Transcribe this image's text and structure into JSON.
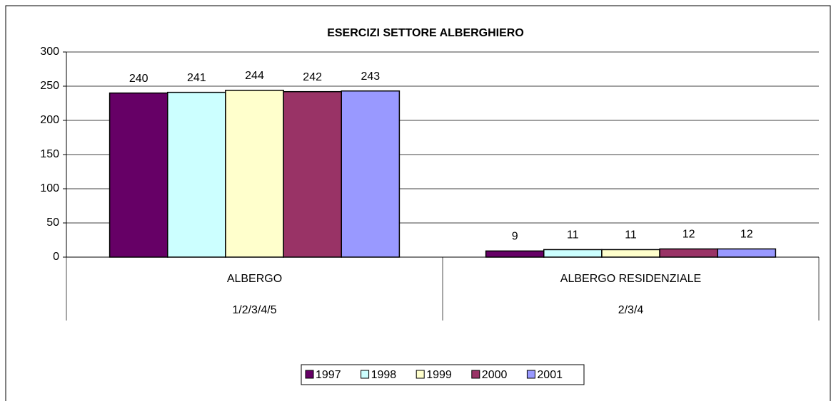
{
  "chart_data": {
    "type": "bar",
    "title": "ESERCIZI SETTORE ALBERGHIERO",
    "categories": [
      "ALBERGO",
      "ALBERGO RESIDENZIALE"
    ],
    "subcategories": [
      "1/2/3/4/5",
      "2/3/4"
    ],
    "series": [
      {
        "name": "1997",
        "color": "#660066",
        "values": [
          240,
          9
        ]
      },
      {
        "name": "1998",
        "color": "#ccffff",
        "values": [
          241,
          11
        ]
      },
      {
        "name": "1999",
        "color": "#ffffcc",
        "values": [
          244,
          11
        ]
      },
      {
        "name": "2000",
        "color": "#993366",
        "values": [
          242,
          12
        ]
      },
      {
        "name": "2001",
        "color": "#9999ff",
        "values": [
          243,
          12
        ]
      }
    ],
    "ylim": [
      0,
      300
    ],
    "yticks": [
      0,
      50,
      100,
      150,
      200,
      250,
      300
    ],
    "grid": true,
    "legend": "bottom"
  }
}
